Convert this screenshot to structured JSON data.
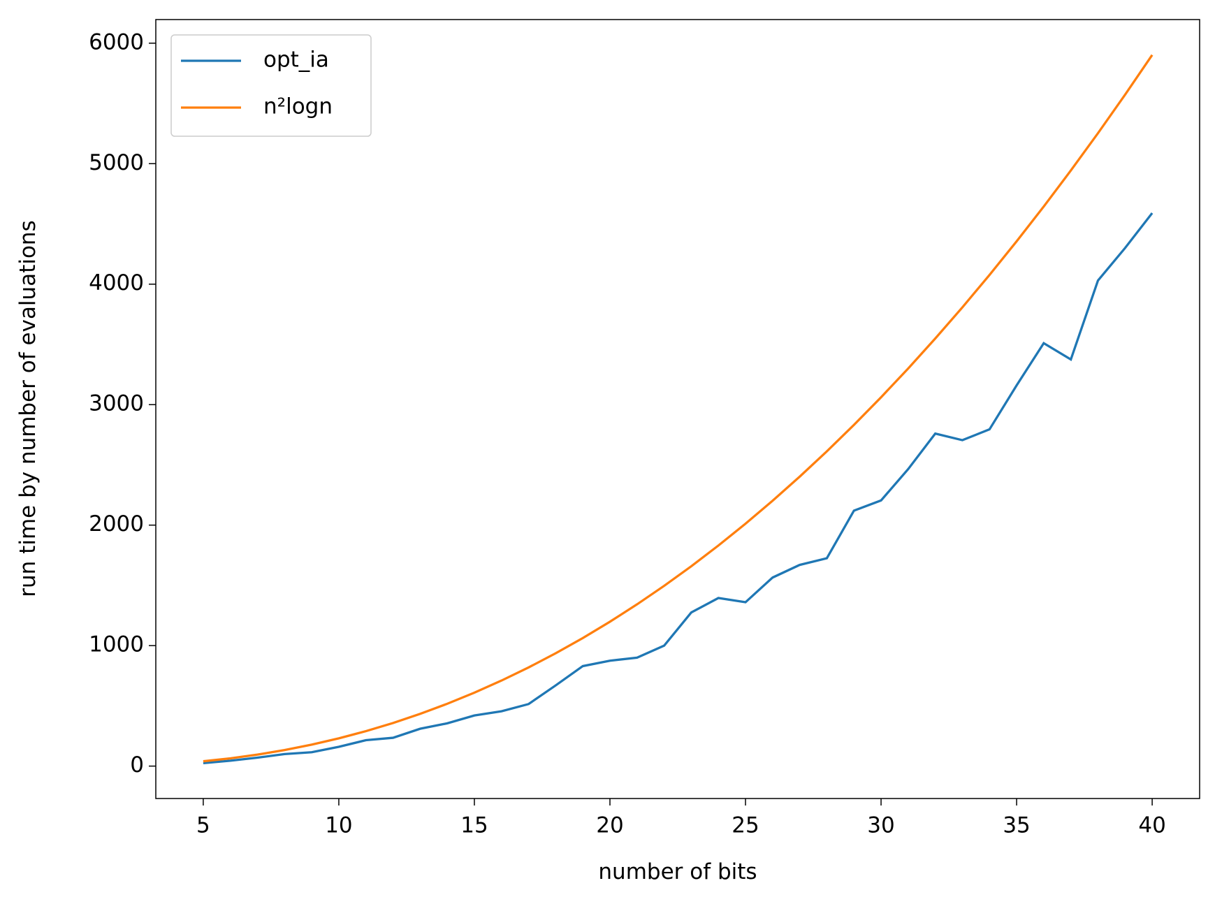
{
  "chart_data": {
    "type": "line",
    "x_label": "number of bits",
    "y_label": "run time by number of evaluations",
    "x": [
      5,
      6,
      7,
      8,
      9,
      10,
      11,
      12,
      13,
      14,
      15,
      16,
      17,
      18,
      19,
      20,
      21,
      22,
      23,
      24,
      25,
      26,
      27,
      28,
      29,
      30,
      31,
      32,
      33,
      34,
      35,
      36,
      37,
      38,
      39,
      40
    ],
    "series": [
      {
        "name": "opt_ia",
        "color": "#1f77b4",
        "values": [
          25,
          45,
          70,
          100,
          115,
          160,
          215,
          235,
          310,
          355,
          420,
          455,
          515,
          670,
          830,
          875,
          900,
          1000,
          1275,
          1395,
          1360,
          1565,
          1670,
          1725,
          2120,
          2205,
          2465,
          2760,
          2705,
          2795,
          3160,
          3510,
          3375,
          4030,
          4300,
          4590
        ]
      },
      {
        "name": "n²logn",
        "color": "#ff7f0e",
        "values": [
          40.2,
          64.5,
          95.3,
          133.1,
          178.0,
          230.3,
          290.1,
          357.8,
          433.5,
          517.3,
          609.3,
          709.8,
          818.8,
          936.5,
          1062.9,
          1198.3,
          1342.6,
          1496.1,
          1658.7,
          1830.6,
          2011.8,
          2202.5,
          2402.7,
          2612.4,
          2831.9,
          3061.1,
          3300.1,
          3548.9,
          3807.7,
          4076.5,
          4355.3,
          4644.2,
          4943.3,
          5252.7,
          5572.3,
          5902.2
        ]
      }
    ],
    "xlim": [
      3.25,
      41.75
    ],
    "xticks": [
      5,
      10,
      15,
      20,
      25,
      30,
      35,
      40
    ],
    "ylim": [
      -269,
      6196
    ],
    "yticks": [
      0,
      1000,
      2000,
      3000,
      4000,
      5000,
      6000
    ],
    "grid": false,
    "legend": "upper left"
  }
}
